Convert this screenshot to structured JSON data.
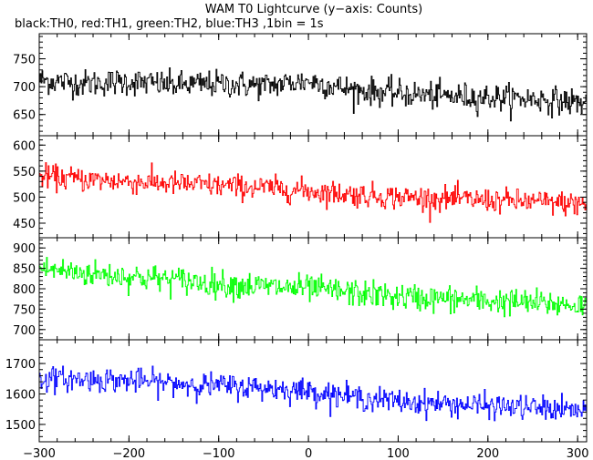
{
  "chart_data": {
    "type": "line",
    "title": "WAM T0 Lightcurve (y−axis: Counts)",
    "subtitle": "black:TH0, red:TH1, green:TH2, blue:TH3 ,1bin = 1s",
    "xlabel": "",
    "x_range": [
      -300,
      310
    ],
    "x_ticks": [
      -300,
      -200,
      -100,
      0,
      100,
      200,
      300
    ],
    "x_tick_labels": [
      "−300",
      "−200",
      "−100",
      "0",
      "100",
      "200",
      "300"
    ],
    "grid": false,
    "series": [
      {
        "name": "TH0",
        "color": "#000000",
        "ylim": [
          612,
          795
        ],
        "y_ticks": [
          650,
          700,
          750
        ],
        "x": [
          -300,
          -250,
          -200,
          -150,
          -100,
          -50,
          0,
          50,
          100,
          150,
          200,
          250,
          300,
          310
        ],
        "values": [
          712,
          706,
          709,
          703,
          705,
          702,
          710,
          694,
          688,
          683,
          681,
          678,
          672,
          670
        ],
        "noise": 22
      },
      {
        "name": "TH1",
        "color": "#ff0000",
        "ylim": [
          422,
          618
        ],
        "y_ticks": [
          450,
          500,
          550,
          600
        ],
        "x": [
          -300,
          -250,
          -200,
          -150,
          -100,
          -50,
          0,
          50,
          100,
          150,
          200,
          250,
          300,
          310
        ],
        "values": [
          540,
          534,
          530,
          526,
          522,
          518,
          512,
          505,
          500,
          497,
          494,
          491,
          487,
          486
        ],
        "noise": 21
      },
      {
        "name": "TH2",
        "color": "#00ff00",
        "ylim": [
          675,
          925
        ],
        "y_ticks": [
          700,
          750,
          800,
          850,
          900
        ],
        "x": [
          -300,
          -250,
          -200,
          -150,
          -100,
          -50,
          0,
          50,
          100,
          150,
          200,
          250,
          300,
          310
        ],
        "values": [
          850,
          838,
          830,
          822,
          812,
          805,
          800,
          790,
          780,
          775,
          770,
          765,
          760,
          758
        ],
        "noise": 30
      },
      {
        "name": "TH3",
        "color": "#0000ff",
        "ylim": [
          1443,
          1778
        ],
        "y_ticks": [
          1500,
          1600,
          1700
        ],
        "x": [
          -300,
          -250,
          -200,
          -150,
          -100,
          -50,
          0,
          50,
          100,
          150,
          200,
          250,
          300,
          310
        ],
        "values": [
          1650,
          1648,
          1644,
          1635,
          1627,
          1620,
          1610,
          1590,
          1575,
          1568,
          1560,
          1555,
          1545,
          1543
        ],
        "noise": 36
      }
    ]
  }
}
